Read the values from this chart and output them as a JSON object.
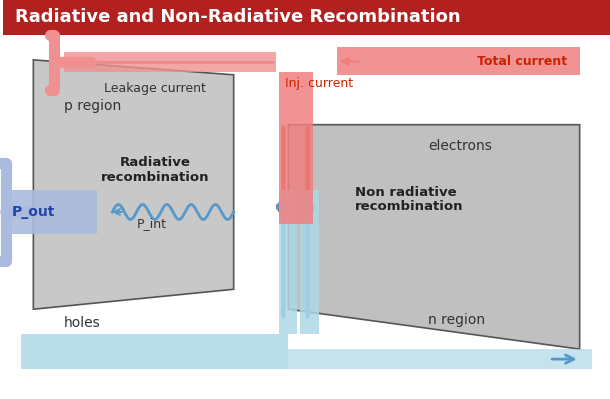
{
  "title": "Radiative and Non-Radiative Recombination",
  "title_bg": "#b22020",
  "title_color": "#ffffff",
  "bg_color": "#ffffff",
  "gray_color": "#b0b0b0",
  "light_gray": "#d0d0d0",
  "pink_color": "#f08080",
  "blue_color": "#87ceeb",
  "dark_blue": "#6699cc",
  "p_region_label": "p region",
  "n_region_label": "n region",
  "electrons_label": "electrons",
  "holes_label": "holes",
  "leakage_label": "Leakage current",
  "inj_label": "Inj. current",
  "total_label": "Total current",
  "radiative_label": "Radiative\nrecombination",
  "non_radiative_label": "Non radiative\nrecombination",
  "pout_label": "P_out",
  "pint_label": "P_int"
}
